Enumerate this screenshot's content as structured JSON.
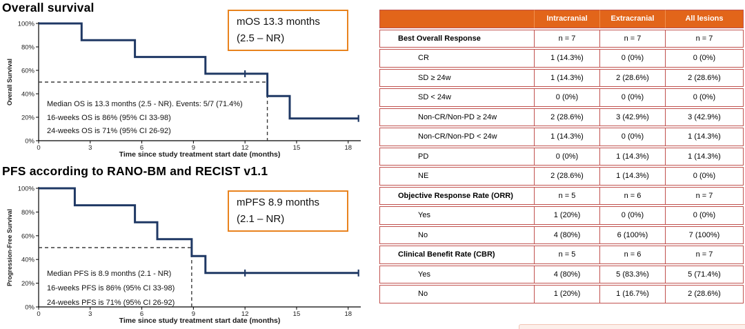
{
  "colors": {
    "curve": "#1F3864",
    "dashed": "#3A3A3A",
    "axis": "#000000",
    "stat_box_border": "#E8821D",
    "table_header_bg": "#E2651A",
    "table_border": "#C0504D",
    "table_header_separator": "#F0914F",
    "strip_fill": "#FCEFEA",
    "strip_edge": "#F2C3B3"
  },
  "chart_data": [
    {
      "type": "line",
      "subtype": "kaplan-meier-step",
      "title": "Overall survival",
      "xlabel": "Time since study treatment start date (months)",
      "ylabel": "Overall Survival",
      "xlim": [
        0,
        18.8
      ],
      "ylim": [
        0,
        100
      ],
      "xticks": [
        0,
        3,
        6,
        9,
        12,
        15,
        18
      ],
      "yticks": [
        0,
        20,
        40,
        60,
        80,
        100
      ],
      "grid": false,
      "median_x": 13.3,
      "steps": [
        [
          0,
          100
        ],
        [
          2.5,
          100
        ],
        [
          2.5,
          85.7
        ],
        [
          5.6,
          85.7
        ],
        [
          5.6,
          71.4
        ],
        [
          9.7,
          71.4
        ],
        [
          9.7,
          57.1
        ],
        [
          13.3,
          57.1
        ],
        [
          13.3,
          38.1
        ],
        [
          14.6,
          38.1
        ],
        [
          14.6,
          19
        ],
        [
          18.6,
          19
        ]
      ],
      "censors": [
        [
          12,
          57.1
        ],
        [
          18.6,
          19
        ]
      ],
      "annotation": [
        "Median OS is 13.3 months (2.5 - NR). Events: 5/7 (71.4%)",
        "16-weeks OS is 86% (95% CI 33-98)",
        "24-weeks OS is 71% (95% CI 26-92)"
      ],
      "stat_box": [
        "mOS 13.3 months",
        "(2.5 – NR)"
      ]
    },
    {
      "type": "line",
      "subtype": "kaplan-meier-step",
      "title": "PFS according to RANO-BM and RECIST v1.1",
      "xlabel": "Time since study treatment start date (months)",
      "ylabel": "Progression-Free Survival",
      "xlim": [
        0,
        18.8
      ],
      "ylim": [
        0,
        100
      ],
      "xticks": [
        0,
        3,
        6,
        9,
        12,
        15,
        18
      ],
      "yticks": [
        0,
        20,
        40,
        60,
        80,
        100
      ],
      "grid": false,
      "median_x": 8.9,
      "steps": [
        [
          0,
          100
        ],
        [
          2.1,
          100
        ],
        [
          2.1,
          85.7
        ],
        [
          5.6,
          85.7
        ],
        [
          5.6,
          71.4
        ],
        [
          6.9,
          71.4
        ],
        [
          6.9,
          57.1
        ],
        [
          8.9,
          57.1
        ],
        [
          8.9,
          42.9
        ],
        [
          9.7,
          42.9
        ],
        [
          9.7,
          28.6
        ],
        [
          18.6,
          28.6
        ]
      ],
      "censors": [
        [
          12,
          28.6
        ],
        [
          18.6,
          28.6
        ]
      ],
      "annotation": [
        "Median PFS is 8.9 months (2.1 - NR)",
        "16-weeks PFS is 86% (95% CI 33-98)",
        "24-weeks PFS is 71% (95% CI 26-92)"
      ],
      "stat_box": [
        "mPFS 8.9 months",
        "(2.1 – NR)"
      ]
    },
    {
      "type": "table",
      "columns": [
        "",
        "Intracranial",
        "Extracranial",
        "All lesions"
      ],
      "rows": [
        {
          "label": "Best Overall Response",
          "bold": true,
          "values": [
            "n = 7",
            "n = 7",
            "n = 7"
          ]
        },
        {
          "label": "CR",
          "bold": false,
          "values": [
            "1 (14.3%)",
            "0 (0%)",
            "0 (0%)"
          ]
        },
        {
          "label": "SD ≥ 24w",
          "bold": false,
          "values": [
            "1 (14.3%)",
            "2 (28.6%)",
            "2 (28.6%)"
          ]
        },
        {
          "label": "SD < 24w",
          "bold": false,
          "values": [
            "0 (0%)",
            "0 (0%)",
            "0 (0%)"
          ]
        },
        {
          "label": "Non-CR/Non-PD ≥ 24w",
          "bold": false,
          "values": [
            "2 (28.6%)",
            "3 (42.9%)",
            "3 (42.9%)"
          ]
        },
        {
          "label": "Non-CR/Non-PD < 24w",
          "bold": false,
          "values": [
            "1 (14.3%)",
            "0 (0%)",
            "1 (14.3%)"
          ]
        },
        {
          "label": "PD",
          "bold": false,
          "values": [
            "0 (0%)",
            "1 (14.3%)",
            "1 (14.3%)"
          ]
        },
        {
          "label": "NE",
          "bold": false,
          "values": [
            "2 (28.6%)",
            "1 (14.3%)",
            "0 (0%)"
          ]
        },
        {
          "label": "Objective Response Rate (ORR)",
          "bold": true,
          "values": [
            "n = 5",
            "n = 6",
            "n = 7"
          ]
        },
        {
          "label": "Yes",
          "bold": false,
          "values": [
            "1 (20%)",
            "0 (0%)",
            "0 (0%)"
          ]
        },
        {
          "label": "No",
          "bold": false,
          "values": [
            "4 (80%)",
            "6 (100%)",
            "7 (100%)"
          ]
        },
        {
          "label": "Clinical Benefit Rate (CBR)",
          "bold": true,
          "values": [
            "n = 5",
            "n = 6",
            "n = 7"
          ]
        },
        {
          "label": "Yes",
          "bold": false,
          "values": [
            "4 (80%)",
            "5 (83.3%)",
            "5 (71.4%)"
          ]
        },
        {
          "label": "No",
          "bold": false,
          "values": [
            "1 (20%)",
            "1 (16.7%)",
            "2 (28.6%)"
          ]
        }
      ]
    }
  ]
}
